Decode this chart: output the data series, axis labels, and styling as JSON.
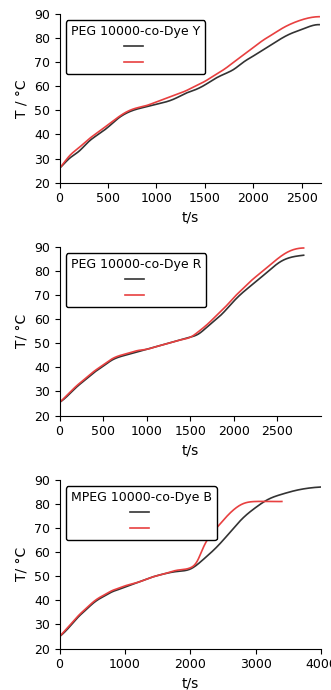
{
  "panels": [
    {
      "label": "PEG 10000-co-Dye Y",
      "xlabel": "t/s",
      "ylabel": "T / °C",
      "xlim": [
        0,
        2700
      ],
      "ylim": [
        20,
        90
      ],
      "xticks": [
        0,
        500,
        1000,
        1500,
        2000,
        2500
      ],
      "yticks": [
        20,
        30,
        40,
        50,
        60,
        70,
        80,
        90
      ],
      "black_x": [
        0,
        50,
        100,
        200,
        300,
        400,
        500,
        600,
        700,
        800,
        900,
        1000,
        1100,
        1200,
        1300,
        1400,
        1500,
        1600,
        1700,
        1800,
        1900,
        2000,
        2100,
        2200,
        2300,
        2400,
        2500,
        2600,
        2680
      ],
      "black_y": [
        26,
        28,
        30,
        33,
        37,
        40,
        43,
        46.5,
        49,
        50.5,
        51.5,
        52.5,
        53.5,
        55,
        57,
        58.5,
        60.5,
        63,
        65,
        67,
        70,
        72.5,
        75,
        77.5,
        80,
        82,
        83.5,
        85,
        85.5
      ],
      "red_x": [
        0,
        50,
        100,
        200,
        300,
        400,
        500,
        600,
        700,
        800,
        900,
        1000,
        1100,
        1200,
        1300,
        1400,
        1500,
        1600,
        1700,
        1800,
        1900,
        2000,
        2100,
        2200,
        2300,
        2400,
        2500,
        2600,
        2680
      ],
      "red_y": [
        26,
        28.5,
        31,
        34.5,
        38,
        41,
        44,
        47,
        49.5,
        51,
        52,
        53.5,
        55,
        56.5,
        58,
        60,
        62,
        64.5,
        67,
        70,
        73,
        76,
        79,
        81.5,
        84,
        86,
        87.5,
        88.5,
        88.8
      ]
    },
    {
      "label": "PEG 10000-co-Dye R",
      "xlabel": "t/s",
      "ylabel": "T/ °C",
      "xlim": [
        0,
        3000
      ],
      "ylim": [
        20,
        90
      ],
      "xticks": [
        0,
        500,
        1000,
        1500,
        2000,
        2500
      ],
      "yticks": [
        20,
        30,
        40,
        50,
        60,
        70,
        80,
        90
      ],
      "black_x": [
        0,
        100,
        200,
        300,
        400,
        500,
        600,
        700,
        800,
        900,
        1000,
        1100,
        1200,
        1300,
        1400,
        1500,
        1600,
        1700,
        1800,
        1900,
        2000,
        2100,
        2200,
        2300,
        2400,
        2500,
        2600,
        2700,
        2800
      ],
      "black_y": [
        25.5,
        28.5,
        32,
        35,
        38,
        40.5,
        43,
        44.5,
        45.5,
        46.5,
        47.5,
        48.5,
        49.5,
        50.5,
        51.5,
        52.5,
        54,
        57,
        60,
        63.5,
        67.5,
        71,
        74,
        77,
        80,
        83,
        85,
        86,
        86.5
      ],
      "red_x": [
        0,
        100,
        200,
        300,
        400,
        500,
        600,
        700,
        800,
        900,
        1000,
        1100,
        1200,
        1300,
        1400,
        1500,
        1600,
        1700,
        1800,
        1900,
        2000,
        2100,
        2200,
        2300,
        2400,
        2500,
        2600,
        2700,
        2800
      ],
      "red_y": [
        25.5,
        29,
        32.5,
        35.5,
        38.5,
        41,
        43.5,
        45,
        46,
        47,
        47.5,
        48.5,
        49.5,
        50.5,
        51.5,
        52.5,
        55,
        58,
        61.5,
        65,
        69,
        72.5,
        76,
        79,
        82,
        85,
        87.5,
        89,
        89.5
      ]
    },
    {
      "label": "MPEG 10000-co-Dye B",
      "xlabel": "t/s",
      "ylabel": "T/ °C",
      "xlim": [
        0,
        4000
      ],
      "ylim": [
        20,
        90
      ],
      "xticks": [
        0,
        1000,
        2000,
        3000,
        4000
      ],
      "yticks": [
        20,
        30,
        40,
        50,
        60,
        70,
        80,
        90
      ],
      "black_x": [
        0,
        100,
        200,
        300,
        400,
        500,
        600,
        700,
        800,
        900,
        1000,
        1200,
        1400,
        1600,
        1800,
        2000,
        2200,
        2400,
        2600,
        2800,
        3000,
        3200,
        3400,
        3600,
        3800,
        4000
      ],
      "black_y": [
        25,
        27.5,
        30.5,
        33.5,
        36,
        38.5,
        40.5,
        42,
        43.5,
        44.5,
        45.5,
        47.5,
        49.5,
        51,
        52,
        53,
        57,
        62,
        68,
        74,
        78.5,
        82,
        84,
        85.5,
        86.5,
        87
      ],
      "red_x": [
        0,
        100,
        200,
        300,
        400,
        500,
        600,
        700,
        800,
        900,
        1000,
        1200,
        1400,
        1600,
        1800,
        2000,
        2100,
        2200,
        2400,
        2600,
        2800,
        3000,
        3200,
        3400
      ],
      "red_y": [
        25,
        28,
        31,
        34,
        36.5,
        39,
        41,
        42.5,
        44,
        45,
        46,
        47.5,
        49.5,
        51,
        52.5,
        53.5,
        56,
        62,
        70,
        76,
        80,
        81,
        81,
        81
      ]
    }
  ],
  "black_color": "#333333",
  "red_color": "#e84040",
  "line_width": 1.2,
  "legend_box": true,
  "font_size": 9,
  "axis_label_fontsize": 10
}
